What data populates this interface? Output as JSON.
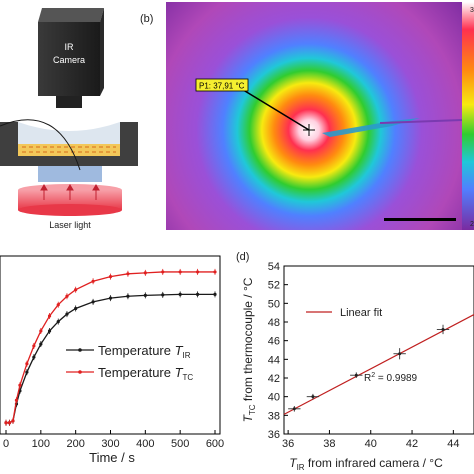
{
  "figure": {
    "panel_a": {
      "camera_label_line1": "IR",
      "camera_label_line2": "Camera",
      "laser_label": "Laser light"
    },
    "panel_b": {
      "tag": "(b)",
      "marker_label": "P1: 37,91 °C",
      "colorbar_top_label": "3",
      "colorbar_bottom_label": "2"
    }
  },
  "chart_data": [
    {
      "type": "line",
      "panel": "c",
      "xlabel": "Time / s",
      "ylabel": "",
      "xlim": [
        0,
        600
      ],
      "xticks": [
        0,
        100,
        200,
        300,
        400,
        500,
        600
      ],
      "legend_position": "center-right",
      "series": [
        {
          "name_main": "Temperature ",
          "name_italic": "T",
          "name_sub": "IR",
          "color": "#1a1a1a",
          "x": [
            0,
            10,
            20,
            30,
            40,
            60,
            80,
            100,
            125,
            150,
            175,
            200,
            250,
            300,
            350,
            400,
            450,
            500,
            550,
            600
          ],
          "y": [
            24.2,
            24.2,
            24.4,
            26.2,
            27.6,
            29.6,
            31.2,
            32.6,
            34.0,
            35.0,
            35.8,
            36.4,
            37.1,
            37.5,
            37.7,
            37.8,
            37.85,
            37.9,
            37.9,
            37.9
          ]
        },
        {
          "name_main": "Temperature ",
          "name_italic": "T",
          "name_sub": "TC",
          "color": "#e02020",
          "x": [
            0,
            10,
            20,
            30,
            40,
            60,
            80,
            100,
            125,
            150,
            175,
            200,
            250,
            300,
            350,
            400,
            450,
            500,
            550,
            600
          ],
          "y": [
            24.2,
            24.2,
            24.4,
            26.6,
            28.2,
            30.5,
            32.4,
            34.0,
            35.6,
            36.8,
            37.7,
            38.4,
            39.3,
            39.8,
            40.1,
            40.2,
            40.3,
            40.3,
            40.3,
            40.3
          ]
        }
      ]
    },
    {
      "type": "scatter",
      "panel": "d",
      "tag": "(d)",
      "xlabel_main": "T",
      "xlabel_sub": "IR",
      "xlabel_rest": " from infrared camera / °C",
      "ylabel_main": "T",
      "ylabel_sub": "TC",
      "ylabel_rest": " from thermocouple / °C",
      "xlim": [
        35.8,
        45
      ],
      "ylim": [
        36,
        54
      ],
      "xticks": [
        36,
        38,
        40,
        42,
        44
      ],
      "yticks": [
        36,
        38,
        40,
        42,
        44,
        46,
        48,
        50,
        52,
        54
      ],
      "legend_label": "Linear fit",
      "fit_color": "#c02020",
      "annotation": "R",
      "annotation_sup": "2",
      "annotation_value": " = 0.9989",
      "points": {
        "x": [
          36.3,
          37.2,
          39.3,
          41.4,
          43.5
        ],
        "y": [
          38.7,
          40.0,
          42.3,
          44.6,
          47.2
        ],
        "xerr": [
          0.3,
          0.3,
          0.3,
          0.3,
          0.3
        ],
        "yerr": [
          0.3,
          0.3,
          0.3,
          0.6,
          0.5
        ]
      },
      "fit": {
        "x": [
          35.8,
          45
        ],
        "y": [
          38.1,
          48.8
        ]
      }
    }
  ]
}
